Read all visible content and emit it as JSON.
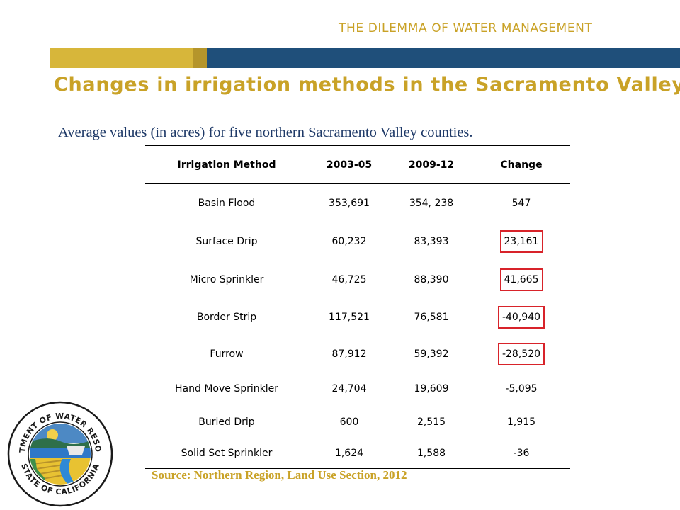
{
  "header": {
    "section_title": "THE DILEMMA OF WATER MANAGEMENT"
  },
  "slide": {
    "title": "Changes in irrigation methods in the Sacramento Valley",
    "subtitle": "Average values (in acres) for five northern Sacramento Valley counties.",
    "source": "Source:  Northern Region, Land Use Section, 2012"
  },
  "table": {
    "headers": [
      "Irrigation Method",
      "2003-05",
      "2009-12",
      "Change"
    ],
    "rows": [
      {
        "method": "Basin Flood",
        "y1": "353,691",
        "y2": "354, 238",
        "change": "547",
        "highlight": false
      },
      {
        "method": "Surface Drip",
        "y1": "60,232",
        "y2": "83,393",
        "change": "23,161",
        "highlight": true
      },
      {
        "method": "Micro Sprinkler",
        "y1": "46,725",
        "y2": "88,390",
        "change": "41,665",
        "highlight": true
      },
      {
        "method": "Border Strip",
        "y1": "117,521",
        "y2": "76,581",
        "change": "-40,940",
        "highlight": true
      },
      {
        "method": "Furrow",
        "y1": "87,912",
        "y2": "59,392",
        "change": "-28,520",
        "highlight": true
      },
      {
        "method": "Hand Move Sprinkler",
        "y1": "24,704",
        "y2": "19,609",
        "change": "-5,095",
        "highlight": false
      },
      {
        "method": "Buried Drip",
        "y1": "600",
        "y2": "2,515",
        "change": "1,915",
        "highlight": false
      },
      {
        "method": "Solid Set Sprinkler",
        "y1": "1,624",
        "y2": "1,588",
        "change": "-36",
        "highlight": false
      }
    ]
  },
  "logo": {
    "name": "department-of-water-resources-seal-icon",
    "text_top": "DEPARTMENT OF WATER RESOURCES",
    "text_bottom": "STATE OF CALIFORNIA"
  },
  "colors": {
    "gold": "#c9a227",
    "navy": "#1f4f7a",
    "highlight_red": "#d8232a"
  }
}
